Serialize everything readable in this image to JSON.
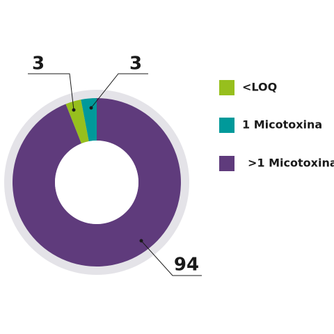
{
  "chart_data": {
    "type": "donut",
    "categories": [
      "<LOQ",
      "1 Micotoxina",
      ">1 Micotoxina"
    ],
    "values": [
      3,
      3,
      94
    ],
    "colors": [
      "#97bf1d",
      "#00999a",
      "#5f3b7c"
    ]
  }
}
